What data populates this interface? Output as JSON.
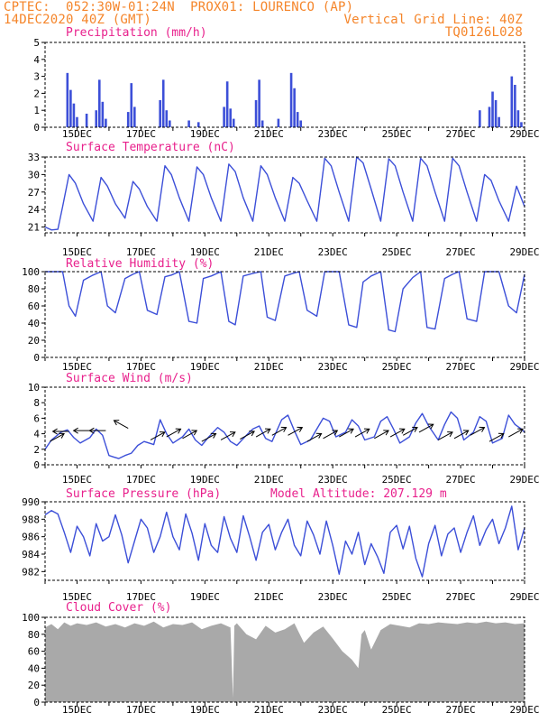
{
  "header": {
    "line1": "CPTEC:  052:30W-01:24N  PROX01: LOURENCO (AP)",
    "line2_left": "14DEC2020 40Z (GMT)",
    "line2_right": "Vertical Grid Line: 40Z",
    "line3_right": "TQ0126L028"
  },
  "colors": {
    "series": "#3c4fd8",
    "title": "#e8208c",
    "header": "#f5852a",
    "cloud": "#a9a9a9",
    "wind_arrow": "#000000"
  },
  "x_axis": {
    "start_day": 14,
    "end_day": 29,
    "tick_labels": [
      "15DEC",
      "17DEC",
      "19DEC",
      "21DEC",
      "23DEC",
      "25DEC",
      "27DEC",
      "29DEC"
    ]
  },
  "chart_data": [
    {
      "type": "bar",
      "title": "Precipitation (mm/h)",
      "ylim": [
        0,
        5
      ],
      "yticks": [
        "0",
        "1",
        "2",
        "3",
        "4",
        "5"
      ],
      "x": [
        14.7,
        14.8,
        14.9,
        15.0,
        15.3,
        15.6,
        15.7,
        15.8,
        15.9,
        16.6,
        16.7,
        16.8,
        17.6,
        17.7,
        17.8,
        17.9,
        18.5,
        18.8,
        19.6,
        19.7,
        19.8,
        19.9,
        20.6,
        20.7,
        20.8,
        21.3,
        21.7,
        21.8,
        21.9,
        22.0,
        27.6,
        27.9,
        28.0,
        28.1,
        28.2,
        28.6,
        28.7,
        28.8,
        28.9
      ],
      "values": [
        3.2,
        2.2,
        1.4,
        0.6,
        0.8,
        1.0,
        2.8,
        1.5,
        0.5,
        0.9,
        2.6,
        1.2,
        1.6,
        2.8,
        1.0,
        0.4,
        0.4,
        0.3,
        1.2,
        2.7,
        1.1,
        0.5,
        1.6,
        2.8,
        0.4,
        0.5,
        3.2,
        2.3,
        0.9,
        0.4,
        1.0,
        1.2,
        2.1,
        1.6,
        0.6,
        3.0,
        2.5,
        1.0,
        0.3
      ]
    },
    {
      "type": "line",
      "title": "Surface Temperature (nC)",
      "ylim": [
        20,
        33
      ],
      "yticks": [
        "21",
        "24",
        "27",
        "30",
        "33"
      ],
      "x": [
        14.0,
        14.2,
        14.4,
        14.55,
        14.75,
        14.95,
        15.2,
        15.5,
        15.75,
        15.95,
        16.2,
        16.5,
        16.75,
        16.95,
        17.2,
        17.5,
        17.75,
        17.95,
        18.2,
        18.5,
        18.75,
        18.95,
        19.2,
        19.5,
        19.75,
        19.95,
        20.2,
        20.5,
        20.75,
        20.95,
        21.2,
        21.5,
        21.75,
        21.95,
        22.2,
        22.5,
        22.75,
        22.95,
        23.2,
        23.5,
        23.75,
        23.95,
        24.2,
        24.5,
        24.75,
        24.95,
        25.2,
        25.5,
        25.75,
        25.95,
        26.2,
        26.5,
        26.75,
        26.95,
        27.2,
        27.5,
        27.75,
        27.95,
        28.2,
        28.5,
        28.75,
        29.0
      ],
      "values": [
        21.0,
        20.5,
        20.6,
        24.5,
        30.0,
        28.5,
        25.0,
        22.0,
        29.5,
        28.0,
        25.0,
        22.5,
        28.8,
        27.5,
        24.5,
        22.0,
        31.5,
        30.0,
        26.0,
        22.0,
        31.3,
        30.0,
        26.0,
        22.0,
        31.8,
        30.5,
        26.0,
        22.0,
        31.5,
        30.0,
        26.0,
        22.0,
        29.5,
        28.5,
        25.5,
        22.0,
        32.8,
        31.5,
        27.0,
        22.0,
        33.0,
        32.0,
        27.5,
        22.0,
        32.7,
        31.5,
        27.0,
        22.0,
        32.8,
        31.5,
        27.0,
        22.0,
        32.8,
        31.5,
        27.0,
        22.0,
        30.0,
        29.0,
        25.5,
        22.0,
        28.0,
        24.5
      ]
    },
    {
      "type": "line",
      "title": "Relative Humidity (%)",
      "ylim": [
        0,
        100
      ],
      "yticks": [
        "0",
        "20",
        "40",
        "60",
        "80",
        "100"
      ],
      "x": [
        14.0,
        14.3,
        14.55,
        14.75,
        14.95,
        15.2,
        15.5,
        15.75,
        15.95,
        16.2,
        16.5,
        16.75,
        16.95,
        17.2,
        17.5,
        17.75,
        17.95,
        18.2,
        18.5,
        18.75,
        18.95,
        19.2,
        19.5,
        19.75,
        19.95,
        20.2,
        20.5,
        20.75,
        20.95,
        21.2,
        21.5,
        21.75,
        21.95,
        22.2,
        22.5,
        22.75,
        22.95,
        23.2,
        23.5,
        23.75,
        23.95,
        24.2,
        24.5,
        24.75,
        24.95,
        25.2,
        25.5,
        25.75,
        25.95,
        26.2,
        26.5,
        26.75,
        26.95,
        27.2,
        27.5,
        27.75,
        27.95,
        28.2,
        28.5,
        28.75,
        29.0
      ],
      "values": [
        100,
        100,
        100,
        60,
        48,
        90,
        96,
        100,
        60,
        52,
        92,
        97,
        100,
        55,
        50,
        94,
        96,
        100,
        42,
        40,
        92,
        95,
        100,
        42,
        38,
        95,
        98,
        100,
        47,
        43,
        95,
        98,
        100,
        55,
        48,
        100,
        100,
        100,
        38,
        35,
        88,
        95,
        100,
        32,
        30,
        80,
        93,
        100,
        35,
        33,
        92,
        97,
        100,
        45,
        42,
        100,
        100,
        100,
        60,
        52,
        97
      ]
    },
    {
      "type": "line",
      "title": "Surface Wind (m/s)",
      "ylim": [
        0,
        10
      ],
      "yticks": [
        "0",
        "2",
        "4",
        "6",
        "8",
        "10"
      ],
      "x": [
        14.0,
        14.2,
        14.5,
        14.7,
        14.9,
        15.1,
        15.4,
        15.6,
        15.8,
        16.0,
        16.3,
        16.5,
        16.7,
        16.9,
        17.1,
        17.4,
        17.6,
        17.8,
        18.0,
        18.3,
        18.5,
        18.7,
        18.9,
        19.1,
        19.4,
        19.6,
        19.8,
        20.0,
        20.3,
        20.5,
        20.7,
        20.9,
        21.1,
        21.4,
        21.6,
        21.8,
        22.0,
        22.3,
        22.5,
        22.7,
        22.9,
        23.1,
        23.4,
        23.6,
        23.8,
        24.0,
        24.3,
        24.5,
        24.7,
        24.9,
        25.1,
        25.4,
        25.6,
        25.8,
        26.0,
        26.3,
        26.5,
        26.7,
        26.9,
        27.1,
        27.4,
        27.6,
        27.8,
        28.0,
        28.3,
        28.5,
        28.7,
        28.9,
        29.0
      ],
      "values": [
        2.0,
        3.2,
        4.2,
        4.5,
        3.5,
        2.8,
        3.5,
        4.6,
        3.8,
        1.2,
        0.8,
        1.2,
        1.5,
        2.5,
        3.0,
        2.6,
        5.8,
        4.0,
        2.8,
        3.6,
        4.6,
        3.2,
        2.5,
        3.5,
        4.8,
        4.2,
        3.0,
        2.5,
        3.8,
        4.6,
        5.0,
        3.4,
        3.0,
        5.8,
        6.4,
        4.4,
        2.6,
        3.2,
        4.6,
        6.0,
        5.6,
        3.6,
        4.2,
        5.8,
        5.0,
        3.2,
        3.6,
        5.6,
        6.2,
        4.6,
        2.8,
        3.6,
        5.4,
        6.6,
        5.0,
        3.2,
        5.2,
        6.8,
        6.0,
        3.2,
        4.2,
        6.2,
        5.6,
        2.8,
        3.4,
        6.4,
        5.2,
        4.6,
        4.2
      ],
      "arrows": [
        {
          "x": 14.15,
          "y": 3.0,
          "dir": "ne"
        },
        {
          "x": 14.75,
          "y": 4.3,
          "dir": "w"
        },
        {
          "x": 15.4,
          "y": 4.4,
          "dir": "w"
        },
        {
          "x": 15.9,
          "y": 4.4,
          "dir": "w"
        },
        {
          "x": 16.6,
          "y": 4.7,
          "dir": "nw"
        },
        {
          "x": 17.3,
          "y": 3.2,
          "dir": "ne"
        },
        {
          "x": 17.8,
          "y": 3.6,
          "dir": "ne"
        },
        {
          "x": 18.3,
          "y": 3.4,
          "dir": "ne"
        },
        {
          "x": 18.9,
          "y": 3.0,
          "dir": "ne"
        },
        {
          "x": 19.5,
          "y": 3.2,
          "dir": "ne"
        },
        {
          "x": 20.1,
          "y": 3.3,
          "dir": "ne"
        },
        {
          "x": 20.6,
          "y": 3.6,
          "dir": "ne"
        },
        {
          "x": 21.1,
          "y": 3.8,
          "dir": "ne"
        },
        {
          "x": 21.6,
          "y": 3.8,
          "dir": "ne"
        },
        {
          "x": 22.2,
          "y": 3.0,
          "dir": "ne"
        },
        {
          "x": 22.7,
          "y": 3.4,
          "dir": "ne"
        },
        {
          "x": 23.2,
          "y": 3.6,
          "dir": "ne"
        },
        {
          "x": 23.7,
          "y": 3.6,
          "dir": "ne"
        },
        {
          "x": 24.3,
          "y": 3.4,
          "dir": "ne"
        },
        {
          "x": 24.8,
          "y": 3.6,
          "dir": "ne"
        },
        {
          "x": 25.2,
          "y": 3.8,
          "dir": "ne"
        },
        {
          "x": 25.7,
          "y": 4.2,
          "dir": "ne"
        },
        {
          "x": 26.3,
          "y": 3.2,
          "dir": "ne"
        },
        {
          "x": 26.8,
          "y": 3.4,
          "dir": "ne"
        },
        {
          "x": 27.3,
          "y": 3.8,
          "dir": "ne"
        },
        {
          "x": 27.9,
          "y": 3.0,
          "dir": "ne"
        },
        {
          "x": 28.5,
          "y": 3.6,
          "dir": "ne"
        }
      ]
    },
    {
      "type": "line",
      "title": "Surface Pressure (hPa)",
      "annotation": "Model Altitude: 207.129 m",
      "ylim": [
        981,
        990
      ],
      "yticks": [
        "982",
        "984",
        "986",
        "988",
        "990"
      ],
      "x": [
        14.0,
        14.2,
        14.4,
        14.6,
        14.8,
        15.0,
        15.2,
        15.4,
        15.6,
        15.8,
        16.0,
        16.2,
        16.4,
        16.6,
        16.8,
        17.0,
        17.2,
        17.4,
        17.6,
        17.8,
        18.0,
        18.2,
        18.4,
        18.6,
        18.8,
        19.0,
        19.2,
        19.4,
        19.6,
        19.8,
        20.0,
        20.2,
        20.4,
        20.6,
        20.8,
        21.0,
        21.2,
        21.4,
        21.6,
        21.8,
        22.0,
        22.2,
        22.4,
        22.6,
        22.8,
        23.0,
        23.2,
        23.4,
        23.6,
        23.8,
        24.0,
        24.2,
        24.4,
        24.6,
        24.8,
        25.0,
        25.2,
        25.4,
        25.6,
        25.8,
        26.0,
        26.2,
        26.4,
        26.6,
        26.8,
        27.0,
        27.2,
        27.4,
        27.6,
        27.8,
        28.0,
        28.2,
        28.4,
        28.6,
        28.8,
        29.0
      ],
      "values": [
        988.5,
        989.0,
        988.6,
        986.5,
        984.2,
        987.2,
        986.0,
        983.8,
        987.5,
        985.5,
        986.0,
        988.5,
        986.2,
        983.0,
        985.5,
        988.0,
        987.0,
        984.2,
        986.0,
        988.8,
        986.0,
        984.5,
        988.6,
        986.4,
        983.3,
        987.5,
        985.0,
        984.2,
        988.3,
        985.8,
        984.2,
        988.4,
        986.0,
        983.3,
        986.5,
        987.4,
        984.5,
        986.5,
        988.0,
        985.0,
        983.8,
        987.8,
        986.2,
        984.0,
        987.8,
        985.0,
        981.7,
        985.5,
        984.0,
        986.5,
        982.8,
        985.2,
        983.7,
        981.8,
        986.5,
        987.3,
        984.6,
        987.2,
        983.5,
        981.4,
        985.2,
        987.3,
        983.8,
        986.3,
        987.0,
        984.2,
        986.5,
        988.4,
        985.0,
        986.8,
        988.0,
        985.2,
        987.0,
        989.5,
        984.5,
        987.0
      ]
    },
    {
      "type": "area",
      "title": "Cloud Cover (%)",
      "ylim": [
        0,
        100
      ],
      "yticks": [
        "0",
        "20",
        "40",
        "60",
        "80",
        "100"
      ],
      "x": [
        14.0,
        14.2,
        14.4,
        14.6,
        14.8,
        15.0,
        15.3,
        15.6,
        15.9,
        16.2,
        16.5,
        16.8,
        17.1,
        17.4,
        17.7,
        18.0,
        18.3,
        18.6,
        18.9,
        19.2,
        19.5,
        19.8,
        19.88,
        19.92,
        20.0,
        20.3,
        20.6,
        20.9,
        21.2,
        21.5,
        21.8,
        22.1,
        22.4,
        22.7,
        23.0,
        23.3,
        23.6,
        23.8,
        23.9,
        24.0,
        24.2,
        24.5,
        24.8,
        25.1,
        25.4,
        25.7,
        26.0,
        26.3,
        26.6,
        26.9,
        27.2,
        27.5,
        27.8,
        28.1,
        28.4,
        28.7,
        29.0
      ],
      "values": [
        88,
        92,
        86,
        94,
        90,
        93,
        91,
        94,
        89,
        92,
        88,
        93,
        90,
        95,
        88,
        92,
        91,
        94,
        86,
        90,
        93,
        88,
        5,
        90,
        93,
        80,
        74,
        90,
        82,
        86,
        93,
        70,
        82,
        89,
        75,
        60,
        50,
        40,
        80,
        85,
        62,
        85,
        92,
        90,
        88,
        93,
        92,
        94,
        93,
        92,
        94,
        93,
        95,
        93,
        94,
        92,
        93
      ]
    }
  ]
}
